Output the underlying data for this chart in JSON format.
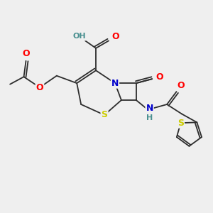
{
  "background_color": "#efefef",
  "bond_color": "#2d2d2d",
  "atom_colors": {
    "O": "#ff0000",
    "N": "#0000cc",
    "S": "#cccc00",
    "H_color": "#4a9090",
    "C": "#2d2d2d"
  },
  "font_size": 8,
  "figsize": [
    3.0,
    3.0
  ],
  "dpi": 100
}
